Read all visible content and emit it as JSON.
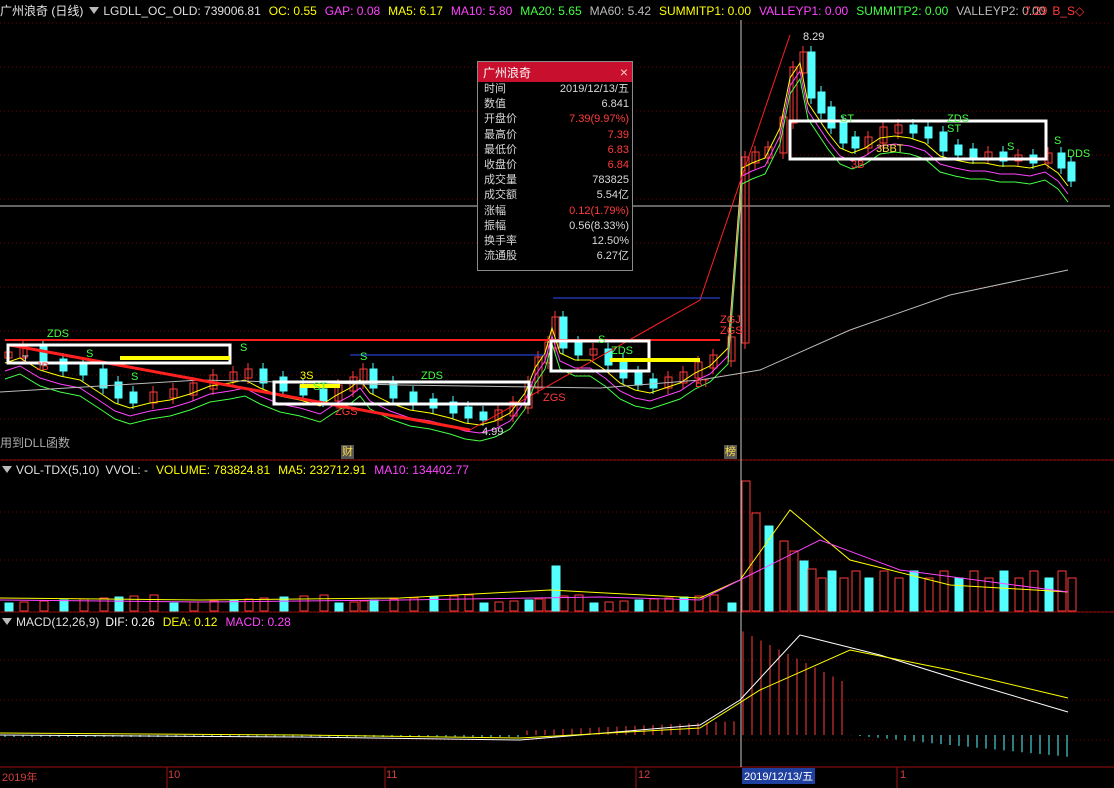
{
  "header": {
    "title": "广州浪奇 (日线)",
    "indicators": [
      {
        "label": "LGDLL_OC_OLD: 739006.81",
        "color": "#e0e0e0"
      },
      {
        "label": "OC: 0.55",
        "color": "#ffff00"
      },
      {
        "label": "GAP: 0.08",
        "color": "#ff44ff"
      },
      {
        "label": "MA5: 6.17",
        "color": "#ffff00"
      },
      {
        "label": "MA10: 5.80",
        "color": "#ff44ff"
      },
      {
        "label": "MA20: 5.65",
        "color": "#44ff44"
      },
      {
        "label": "MA60: 5.42",
        "color": "#bbbbbb"
      },
      {
        "label": "SUMMITP1: 0.00",
        "color": "#ffff00"
      },
      {
        "label": "VALLEYP1: 0.00",
        "color": "#ff44ff"
      },
      {
        "label": "SUMMITP2: 0.00",
        "color": "#44ff44"
      },
      {
        "label": "VALLEYP2: 0.00",
        "color": "#bbbbbb"
      }
    ],
    "right_value": "7.29",
    "right_tag": "B_S◇"
  },
  "main_chart": {
    "annotations": {
      "high_label": "8.29",
      "low_label": "4.99",
      "dll_note": "用到DLL函数",
      "cai_badge": "财",
      "bang_badge": "榜",
      "zds1": "ZDS",
      "zds2": "ZDS",
      "zds3": "ZDS",
      "zds4": "ZDS",
      "zds5": "ZDS",
      "dds": "DDS",
      "s_marks": [
        "S",
        "S",
        "S",
        "S",
        "S",
        "S",
        "S"
      ],
      "three_s": "3S",
      "st1": "ST",
      "st2": "ST",
      "st3": "ST",
      "zgs1": "ZGS",
      "zgs2": "ZGS",
      "zgs3": "ZGS",
      "zgj": "ZGJ",
      "bt": "BT",
      "three_b": "3B",
      "three_bbt": "3BBT",
      "t_mark": "T",
      "jb": "JB"
    }
  },
  "tooltip": {
    "title": "广州浪奇",
    "close_icon": "×",
    "rows": [
      {
        "k": "时间",
        "v": "2019/12/13/五",
        "red": false
      },
      {
        "k": "数值",
        "v": "6.841",
        "red": false
      },
      {
        "k": "开盘价",
        "v": "7.39(9.97%)",
        "red": true
      },
      {
        "k": "最高价",
        "v": "7.39",
        "red": true
      },
      {
        "k": "最低价",
        "v": "6.83",
        "red": true
      },
      {
        "k": "收盘价",
        "v": "6.84",
        "red": true
      },
      {
        "k": "成交量",
        "v": "783825",
        "red": false
      },
      {
        "k": "成交额",
        "v": "5.54亿",
        "red": false
      },
      {
        "k": "涨幅",
        "v": "0.12(1.79%)",
        "red": true
      },
      {
        "k": "振幅",
        "v": "0.56(8.33%)",
        "red": false
      },
      {
        "k": "换手率",
        "v": "12.50%",
        "red": false
      },
      {
        "k": "流通股",
        "v": "6.27亿",
        "red": false
      }
    ]
  },
  "volume_panel": {
    "name": "VOL-TDX(5,10)",
    "indicators": [
      {
        "label": "VVOL: -",
        "color": "#e0e0e0"
      },
      {
        "label": "VOLUME: 783824.81",
        "color": "#ffff00"
      },
      {
        "label": "MA5: 232712.91",
        "color": "#ffff00"
      },
      {
        "label": "MA10: 134402.77",
        "color": "#ff44ff"
      }
    ]
  },
  "macd_panel": {
    "name": "MACD(12,26,9)",
    "indicators": [
      {
        "label": "DIF: 0.26",
        "color": "#ffffff"
      },
      {
        "label": "DEA: 0.12",
        "color": "#ffff00"
      },
      {
        "label": "MACD: 0.28",
        "color": "#ff44ff"
      }
    ]
  },
  "x_axis": {
    "labels": [
      "2019年",
      "10",
      "11",
      "12",
      "1"
    ],
    "cursor_date": "2019/12/13/五"
  },
  "colors": {
    "up": "#ff3b3b",
    "down": "#54ffff",
    "background": "#000000",
    "grid": "#7a0000"
  }
}
